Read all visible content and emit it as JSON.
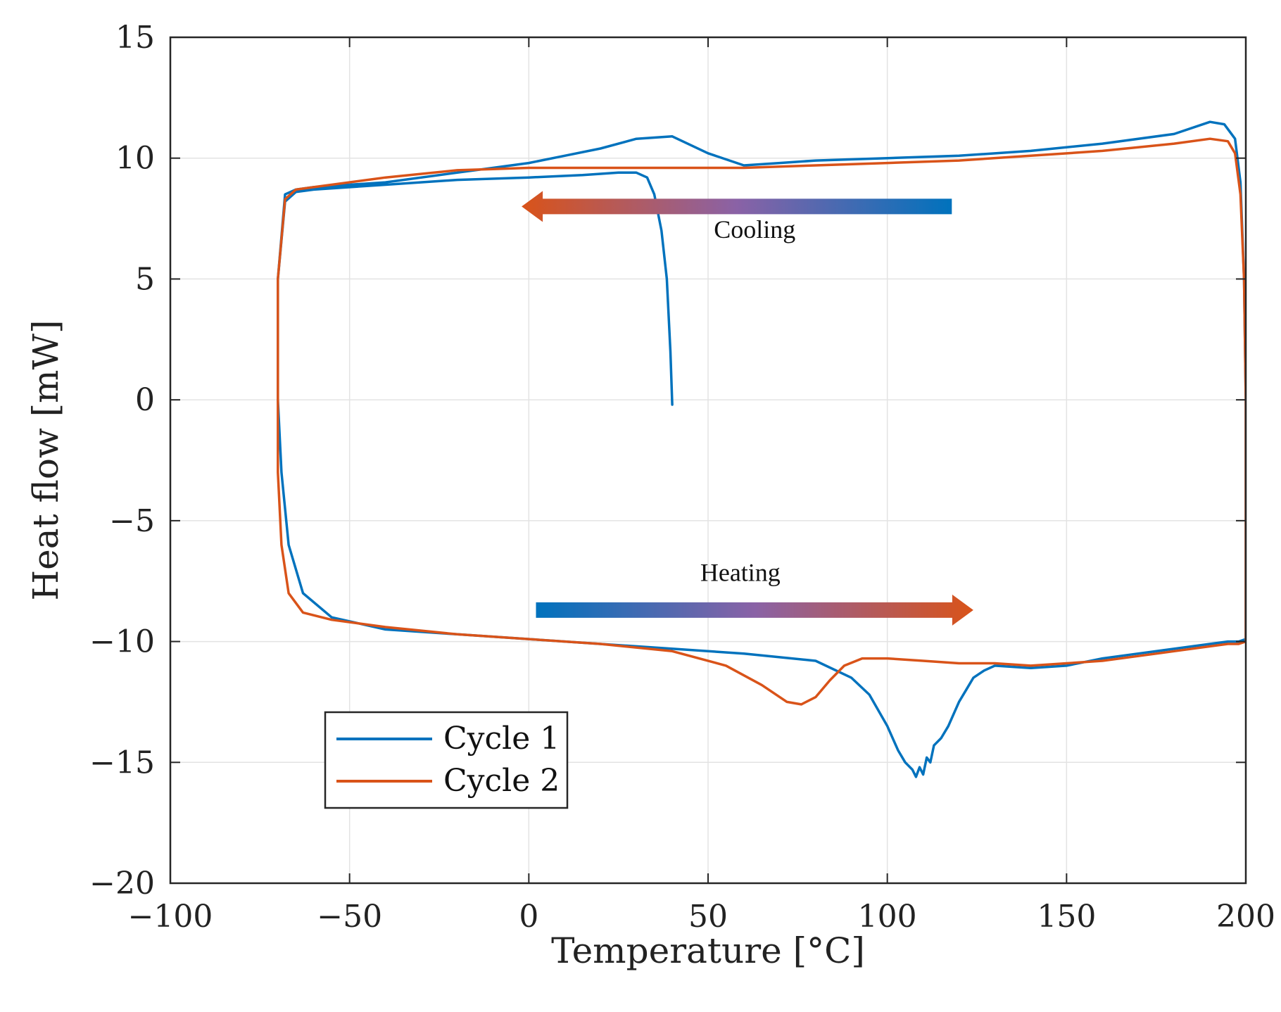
{
  "chart_data": {
    "type": "line",
    "title": "",
    "xlabel": "Temperature [°C]",
    "ylabel": "Heat flow [mW]",
    "xlim": [
      -100,
      200
    ],
    "ylim": [
      -20,
      15
    ],
    "xticks": [
      -100,
      -50,
      0,
      50,
      100,
      150,
      200
    ],
    "yticks": [
      -20,
      -15,
      -10,
      -5,
      0,
      5,
      10,
      15
    ],
    "xtick_labels": [
      "−100",
      "−50",
      "0",
      "50",
      "100",
      "150",
      "200"
    ],
    "ytick_labels": [
      "−20",
      "−15",
      "−10",
      "−5",
      "0",
      "5",
      "10",
      "15"
    ],
    "grid": true,
    "legend_position": "bottom-left",
    "series": [
      {
        "name": "Cycle 1",
        "color": "#0072BD",
        "x": [
          40,
          39.5,
          38.5,
          37,
          35,
          33,
          30,
          25,
          15,
          0,
          -20,
          -40,
          -60,
          -65,
          -68,
          -70,
          -70,
          -69,
          -67,
          -63,
          -55,
          -40,
          -20,
          0,
          30,
          60,
          80,
          90,
          95,
          100,
          103,
          105,
          107,
          108,
          109,
          110,
          111,
          112,
          113,
          115,
          117,
          120,
          122,
          124,
          127,
          130,
          140,
          150,
          160,
          170,
          180,
          190,
          195,
          198,
          200,
          200,
          199.5,
          198.5,
          197,
          194,
          190,
          180,
          160,
          140,
          120,
          100,
          80,
          70,
          60,
          50,
          40,
          30,
          20,
          10,
          0,
          -10,
          -20,
          -40,
          -60,
          -65,
          -68,
          -70,
          -70
        ],
        "y": [
          -0.2,
          2,
          5,
          7,
          8.5,
          9.2,
          9.4,
          9.4,
          9.3,
          9.2,
          9.1,
          8.9,
          8.7,
          8.6,
          8.2,
          5,
          0,
          -3,
          -6,
          -8,
          -9,
          -9.5,
          -9.7,
          -9.9,
          -10.2,
          -10.5,
          -10.8,
          -11.5,
          -12.2,
          -13.5,
          -14.5,
          -15.0,
          -15.3,
          -15.6,
          -15.2,
          -15.5,
          -14.8,
          -15.0,
          -14.3,
          -14.0,
          -13.5,
          -12.5,
          -12.0,
          -11.5,
          -11.2,
          -11.0,
          -11.1,
          -11.0,
          -10.7,
          -10.5,
          -10.3,
          -10.1,
          -10.0,
          -10.0,
          -9.9,
          0,
          5,
          9,
          10.8,
          11.4,
          11.5,
          11.0,
          10.6,
          10.3,
          10.1,
          10.0,
          9.9,
          9.8,
          9.7,
          10.2,
          10.9,
          10.8,
          10.4,
          10.1,
          9.8,
          9.6,
          9.4,
          9.0,
          8.8,
          8.7,
          8.5,
          5,
          0
        ]
      },
      {
        "name": "Cycle 2",
        "color": "#D95319",
        "x": [
          -70,
          -70,
          -69,
          -67,
          -63,
          -55,
          -40,
          -20,
          0,
          20,
          40,
          55,
          65,
          72,
          76,
          80,
          84,
          88,
          93,
          100,
          110,
          120,
          130,
          140,
          150,
          160,
          170,
          180,
          190,
          195,
          198,
          200,
          200,
          199.5,
          198.5,
          197,
          195,
          190,
          180,
          160,
          140,
          120,
          100,
          80,
          60,
          40,
          20,
          0,
          -10,
          -20,
          -40,
          -60,
          -65,
          -68,
          -70,
          -70
        ],
        "y": [
          0.5,
          -3,
          -6,
          -8,
          -8.8,
          -9.1,
          -9.4,
          -9.7,
          -9.9,
          -10.1,
          -10.4,
          -11.0,
          -11.8,
          -12.5,
          -12.6,
          -12.3,
          -11.6,
          -11.0,
          -10.7,
          -10.7,
          -10.8,
          -10.9,
          -10.9,
          -11.0,
          -10.9,
          -10.8,
          -10.6,
          -10.4,
          -10.2,
          -10.1,
          -10.1,
          -10.0,
          0,
          5,
          8.5,
          10.2,
          10.7,
          10.8,
          10.6,
          10.3,
          10.1,
          9.9,
          9.8,
          9.7,
          9.6,
          9.6,
          9.6,
          9.6,
          9.55,
          9.5,
          9.2,
          8.8,
          8.7,
          8.3,
          5,
          0.5
        ]
      }
    ],
    "annotations": [
      {
        "text": "Cooling",
        "x": 63,
        "y": 6.7,
        "arrow_from_x": 118,
        "arrow_to_x": -2,
        "arrow_y": 8.0,
        "direction": "left",
        "gradient": [
          "#0072BD",
          "#D95319"
        ]
      },
      {
        "text": "Heating",
        "x": 59,
        "y": -7.5,
        "arrow_from_x": 2,
        "arrow_to_x": 124,
        "arrow_y": -8.7,
        "direction": "right",
        "gradient": [
          "#0072BD",
          "#D95319"
        ]
      }
    ]
  }
}
